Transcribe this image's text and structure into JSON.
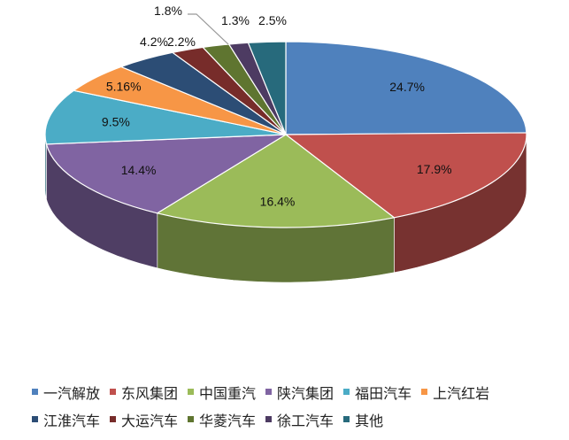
{
  "chart_data": {
    "type": "pie",
    "style": "3d",
    "start": "12 o'clock, clockwise",
    "legend_position": "bottom",
    "slices": [
      {
        "name": "一汽解放",
        "value": 24.7,
        "label": "24.7%",
        "color": "#4F81BD"
      },
      {
        "name": "东风集团",
        "value": 17.9,
        "label": "17.9%",
        "color": "#C0504D"
      },
      {
        "name": "中国重汽",
        "value": 16.4,
        "label": "16.4%",
        "color": "#9BBB59"
      },
      {
        "name": "陕汽集团",
        "value": 14.4,
        "label": "14.4%",
        "color": "#8064A2"
      },
      {
        "name": "福田汽车",
        "value": 9.5,
        "label": "9.5%",
        "color": "#4BACC6"
      },
      {
        "name": "上汽红岩",
        "value": 5.16,
        "label": "5.16%",
        "color": "#F79646"
      },
      {
        "name": "江淮汽车",
        "value": 4.2,
        "label": "4.2%",
        "color": "#2C4D75"
      },
      {
        "name": "大运汽车",
        "value": 2.2,
        "label": "2.2%",
        "color": "#772C2A"
      },
      {
        "name": "华菱汽车",
        "value": 1.8,
        "label": "1.8%",
        "color": "#5F7530"
      },
      {
        "name": "徐工汽车",
        "value": 1.3,
        "label": "1.3%",
        "color": "#4D3B62"
      },
      {
        "name": "其他",
        "value": 2.5,
        "label": "2.5%",
        "color": "#276A7C"
      }
    ]
  }
}
